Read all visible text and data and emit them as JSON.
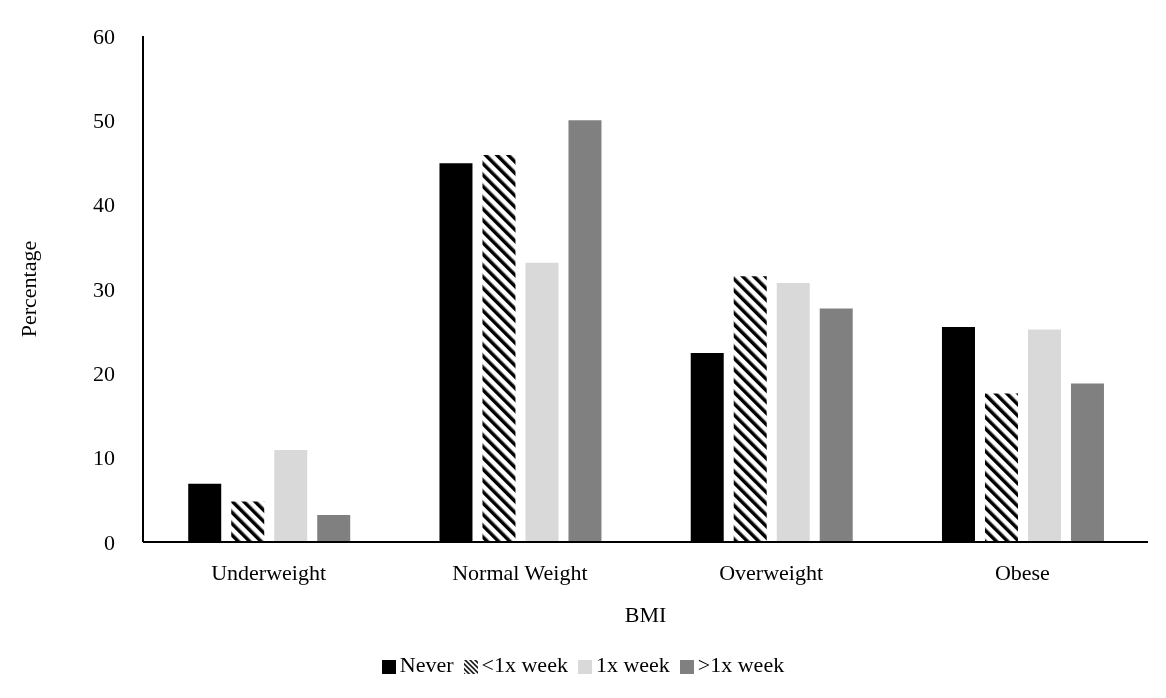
{
  "chart_data": {
    "type": "bar",
    "xlabel": "BMI",
    "ylabel": "Percentage",
    "categories": [
      "Underweight",
      "Normal Weight",
      "Overweight",
      "Obese"
    ],
    "series": [
      {
        "name": "Never",
        "color": "#000000",
        "values": [
          6.9,
          44.9,
          22.4,
          25.5
        ]
      },
      {
        "name": "<1x week",
        "color": "#000000",
        "values": [
          4.8,
          45.9,
          31.5,
          17.6
        ]
      },
      {
        "name": "1x week",
        "color": "#d9d9d9",
        "values": [
          10.9,
          33.1,
          30.7,
          25.2
        ]
      },
      {
        "name": ">1x week",
        "color": "#808080",
        "values": [
          3.2,
          50.0,
          27.7,
          18.8
        ]
      }
    ],
    "ylim": [
      0,
      60
    ],
    "yticks": [
      0,
      10,
      20,
      30,
      40,
      50,
      60
    ],
    "grid": false,
    "legend": "bottom"
  }
}
